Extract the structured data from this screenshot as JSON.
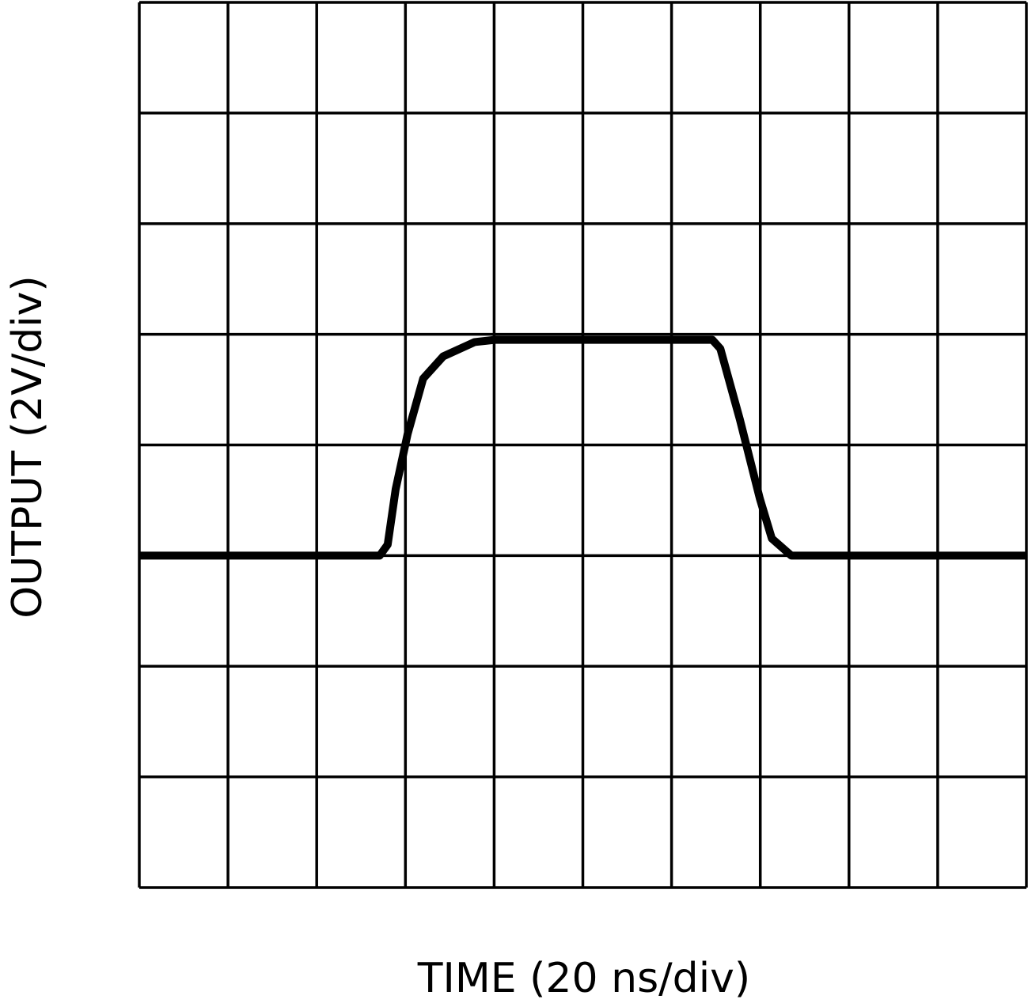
{
  "chart_data": {
    "type": "line",
    "x_label": "TIME (20 ns/div)",
    "y_label": "OUTPUT (2V/div)",
    "x": [
      0,
      54.2,
      56.0,
      57.8,
      60.5,
      64.0,
      68.5,
      75.6,
      80.1,
      129.2,
      131.0,
      135.4,
      139.9,
      142.6,
      147.0,
      200
    ],
    "series": [
      {
        "color": "#000000",
        "values": [
          6.0,
          6.0,
          6.2,
          7.2,
          8.2,
          9.2,
          9.6,
          9.86,
          9.9,
          9.9,
          9.74,
          8.46,
          7.03,
          6.31,
          6.0,
          6.0
        ]
      }
    ],
    "xlim": [
      0,
      200
    ],
    "ylim": [
      0,
      16
    ],
    "xticks": [
      0,
      20,
      40,
      60,
      80,
      100,
      120,
      140,
      160,
      180,
      200
    ],
    "yticks": [
      0,
      2,
      4,
      6,
      8,
      10,
      12,
      14,
      16
    ],
    "grid": true,
    "tick_labels": false
  }
}
